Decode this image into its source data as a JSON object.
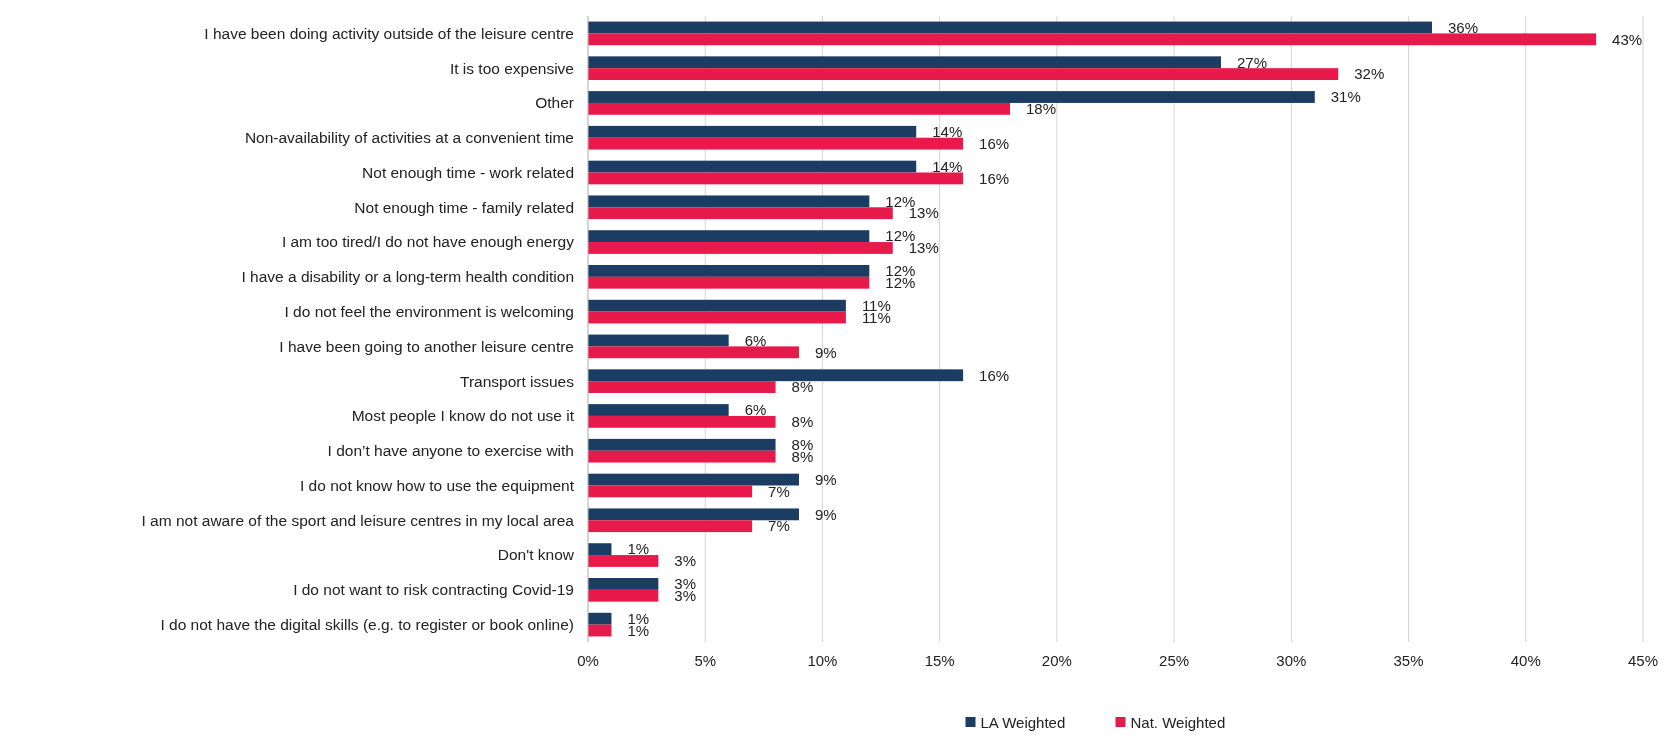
{
  "chart_data": {
    "type": "bar",
    "orientation": "horizontal",
    "categories": [
      "I have been doing activity outside of the leisure centre",
      "It is too expensive",
      "Other",
      "Non-availability of activities at a convenient time",
      "Not enough time - work related",
      "Not enough time - family related",
      "I am too tired/I do not have enough energy",
      "I have a disability or a long-term health condition",
      "I do not feel the environment is welcoming",
      "I have been going to another leisure centre",
      "Transport issues",
      "Most people I know do not use it",
      "I don’t have anyone to exercise with",
      "I do not know how to use the equipment",
      "I am not aware of the sport and leisure centres in my local area",
      "Don't know",
      "I do not want to risk contracting Covid-19",
      "I do not have the digital skills (e.g. to register or book online)"
    ],
    "series": [
      {
        "name": "LA Weighted",
        "color": "#1c3d63",
        "values": [
          36,
          27,
          31,
          14,
          14,
          12,
          12,
          12,
          11,
          6,
          16,
          6,
          8,
          9,
          9,
          1,
          3,
          1
        ],
        "value_labels": [
          "36%",
          "27%",
          "31%",
          "14%",
          "14%",
          "12%",
          "12%",
          "12%",
          "11%",
          "6%",
          "16%",
          "6%",
          "8%",
          "9%",
          "9%",
          "1%",
          "3%",
          "1%"
        ]
      },
      {
        "name": "Nat. Weighted",
        "color": "#e8194b",
        "values": [
          43,
          32,
          18,
          16,
          16,
          13,
          13,
          12,
          11,
          9,
          8,
          8,
          8,
          7,
          7,
          3,
          3,
          1
        ],
        "value_labels": [
          "43%",
          "32%",
          "18%",
          "16%",
          "16%",
          "13%",
          "13%",
          "12%",
          "11%",
          "9%",
          "8%",
          "8%",
          "8%",
          "7%",
          "7%",
          "3%",
          "3%",
          "1%"
        ]
      }
    ],
    "xlim": [
      0,
      45
    ],
    "xticks": [
      {
        "value": 0,
        "label": "0%"
      },
      {
        "value": 5,
        "label": "5%"
      },
      {
        "value": 10,
        "label": "10%"
      },
      {
        "value": 15,
        "label": "15%"
      },
      {
        "value": 20,
        "label": "20%"
      },
      {
        "value": 25,
        "label": "25%"
      },
      {
        "value": 30,
        "label": "30%"
      },
      {
        "value": 35,
        "label": "35%"
      },
      {
        "value": 40,
        "label": "40%"
      },
      {
        "value": 45,
        "label": "45%"
      }
    ],
    "grid": "x",
    "legend": "bottom"
  }
}
